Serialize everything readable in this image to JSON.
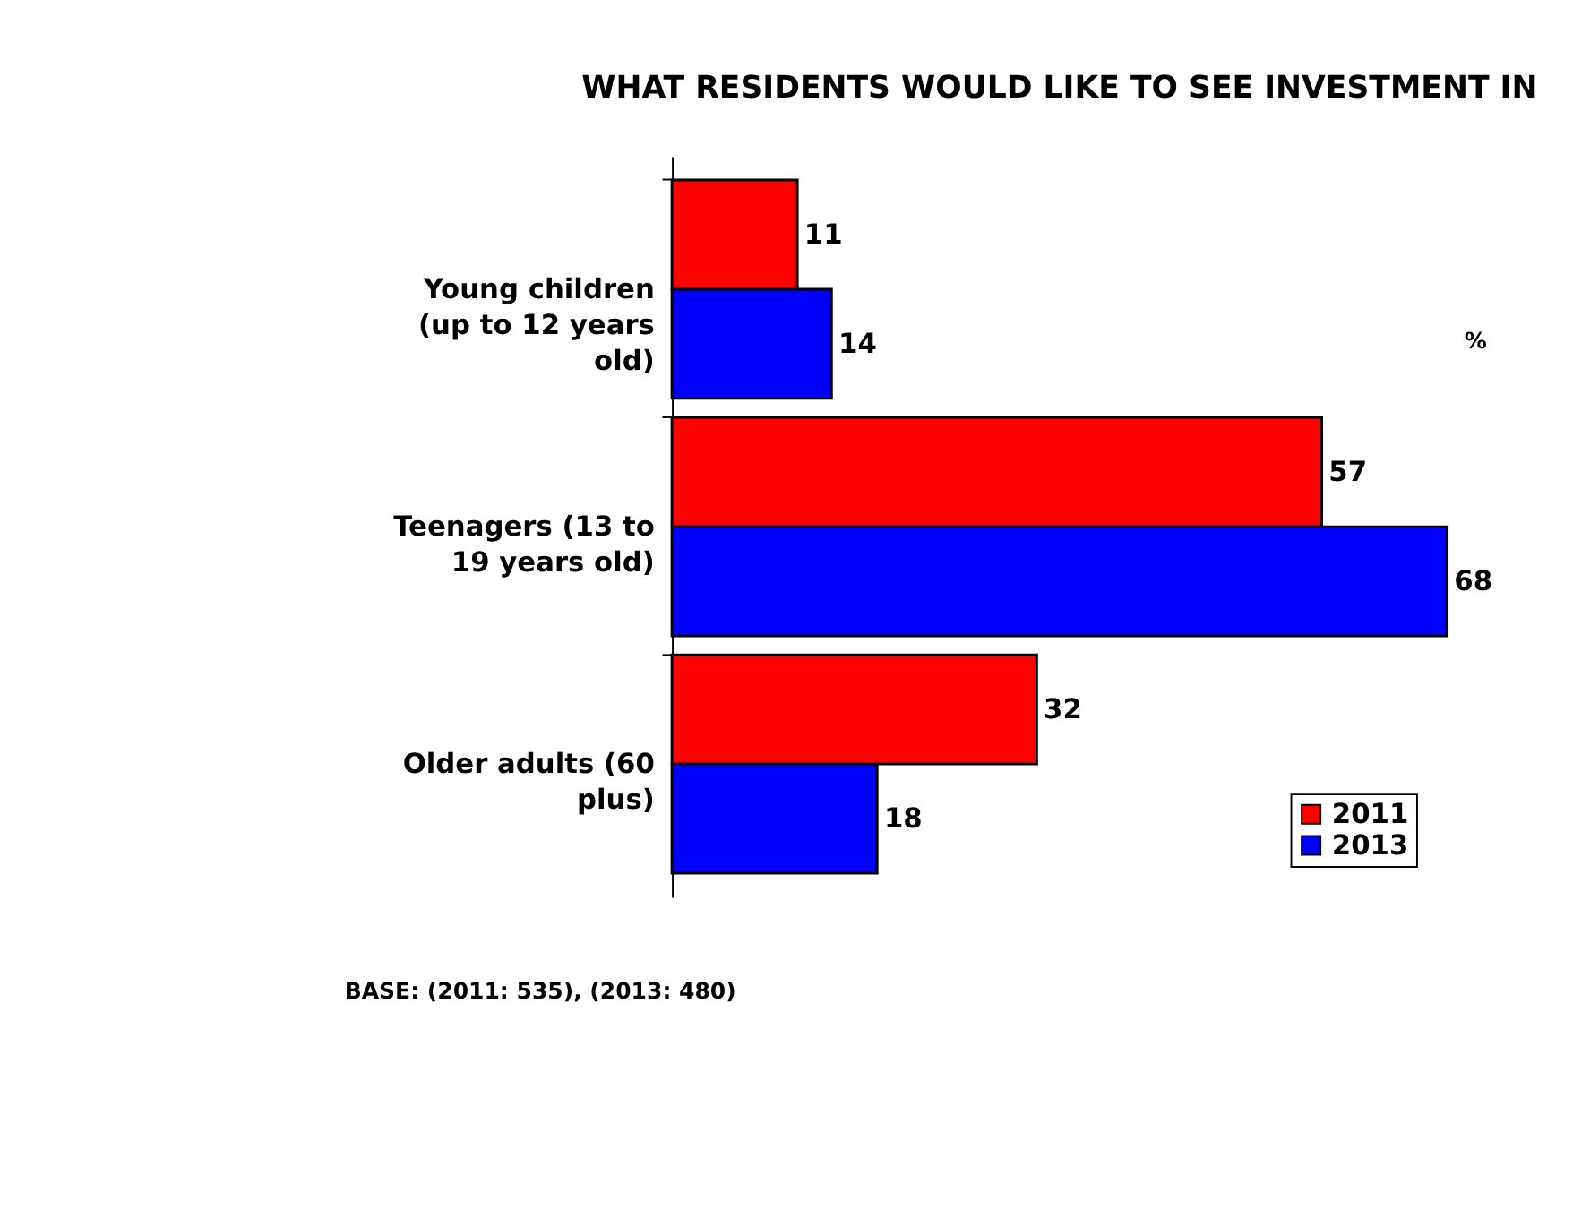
{
  "chart_data": {
    "type": "bar",
    "orientation": "horizontal",
    "title": "WHAT RESIDENTS WOULD LIKE TO SEE INVESTMENT IN",
    "categories": [
      "Young children (up to 12 years old)",
      "Teenagers (13 to 19 years old)",
      "Older adults (60 plus)"
    ],
    "series": [
      {
        "name": "2011",
        "color": "#ff0000",
        "values": [
          11,
          57,
          32
        ]
      },
      {
        "name": "2013",
        "color": "#0000ff",
        "values": [
          14,
          68,
          18
        ]
      }
    ],
    "data_labels": true,
    "legend": "bottom right",
    "annotations": [
      "%",
      "BASE: (2011: 535), (2013: 480)"
    ]
  }
}
